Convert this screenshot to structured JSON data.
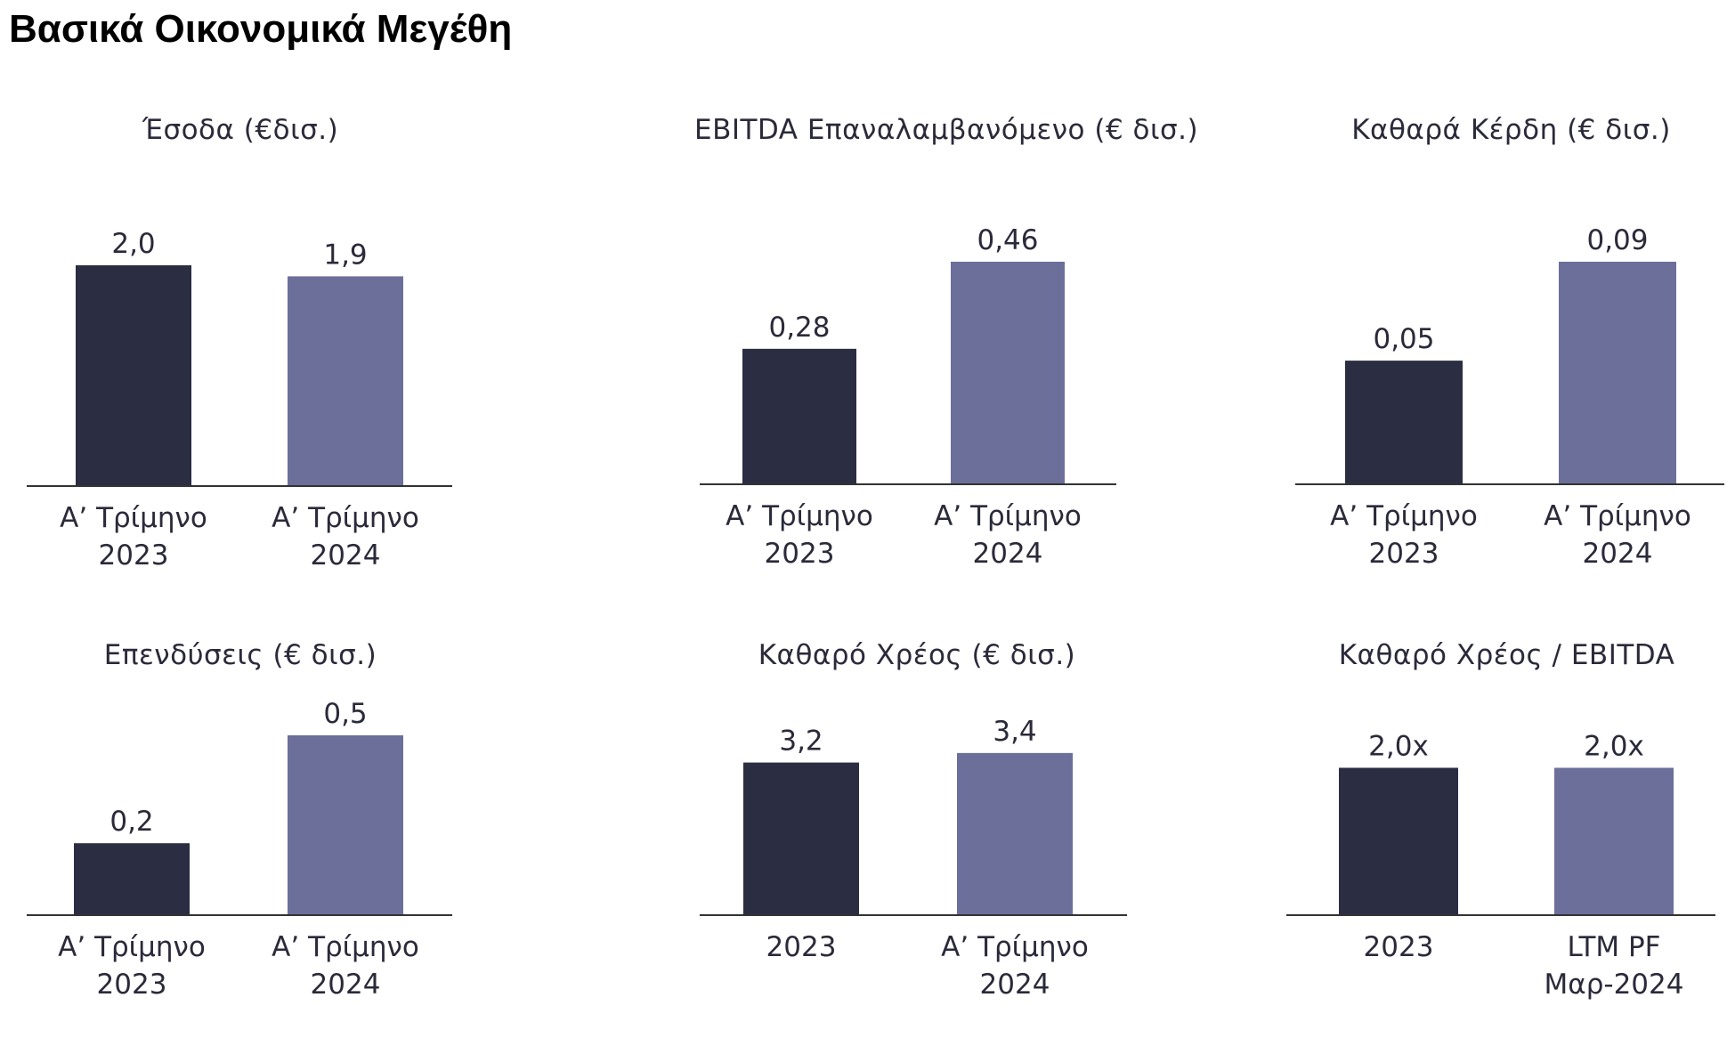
{
  "page_title": "Βασικά Οικονομικά Μεγέθη",
  "colors": {
    "dark_bar": "#2b2d42",
    "light_bar": "#6b6f9a",
    "axis": "#333333"
  },
  "chart_data": [
    {
      "type": "bar",
      "title": "Έσοδα (€δισ.)",
      "categories": [
        "Α’ Τρίμηνο\n2023",
        "Α’ Τρίμηνο\n2024"
      ],
      "values": [
        2.0,
        1.9
      ],
      "value_labels": [
        "2,0",
        "1,9"
      ],
      "ylim": [
        0,
        2.0
      ]
    },
    {
      "type": "bar",
      "title": "EBITDA Επαναλαμβανόμενο (€ δισ.)",
      "categories": [
        "Α’ Τρίμηνο\n2023",
        "Α’ Τρίμηνο\n2024"
      ],
      "values": [
        0.28,
        0.46
      ],
      "value_labels": [
        "0,28",
        "0,46"
      ],
      "ylim": [
        0,
        0.46
      ]
    },
    {
      "type": "bar",
      "title": "Καθαρά Κέρδη (€ δισ.)",
      "categories": [
        "Α’ Τρίμηνο\n2023",
        "Α’ Τρίμηνο\n2024"
      ],
      "values": [
        0.05,
        0.09
      ],
      "value_labels": [
        "0,05",
        "0,09"
      ],
      "ylim": [
        0,
        0.09
      ]
    },
    {
      "type": "bar",
      "title": "Επενδύσεις (€ δισ.)",
      "categories": [
        "Α’ Τρίμηνο\n2023",
        "Α’ Τρίμηνο\n2024"
      ],
      "values": [
        0.2,
        0.5
      ],
      "value_labels": [
        "0,2",
        "0,5"
      ],
      "ylim": [
        0,
        0.5
      ]
    },
    {
      "type": "bar",
      "title": "Καθαρό Χρέος (€ δισ.)",
      "categories": [
        "2023",
        "Α’ Τρίμηνο\n2024"
      ],
      "values": [
        3.2,
        3.4
      ],
      "value_labels": [
        "3,2",
        "3,4"
      ],
      "ylim": [
        0,
        5.6
      ]
    },
    {
      "type": "bar",
      "title": "Καθαρό Χρέος / EBITDA",
      "categories": [
        "2023",
        "LTM PF\nΜαρ-2024"
      ],
      "values": [
        2.0,
        2.0
      ],
      "value_labels": [
        "2,0x",
        "2,0x"
      ],
      "ylim": [
        0,
        5.8
      ]
    }
  ]
}
